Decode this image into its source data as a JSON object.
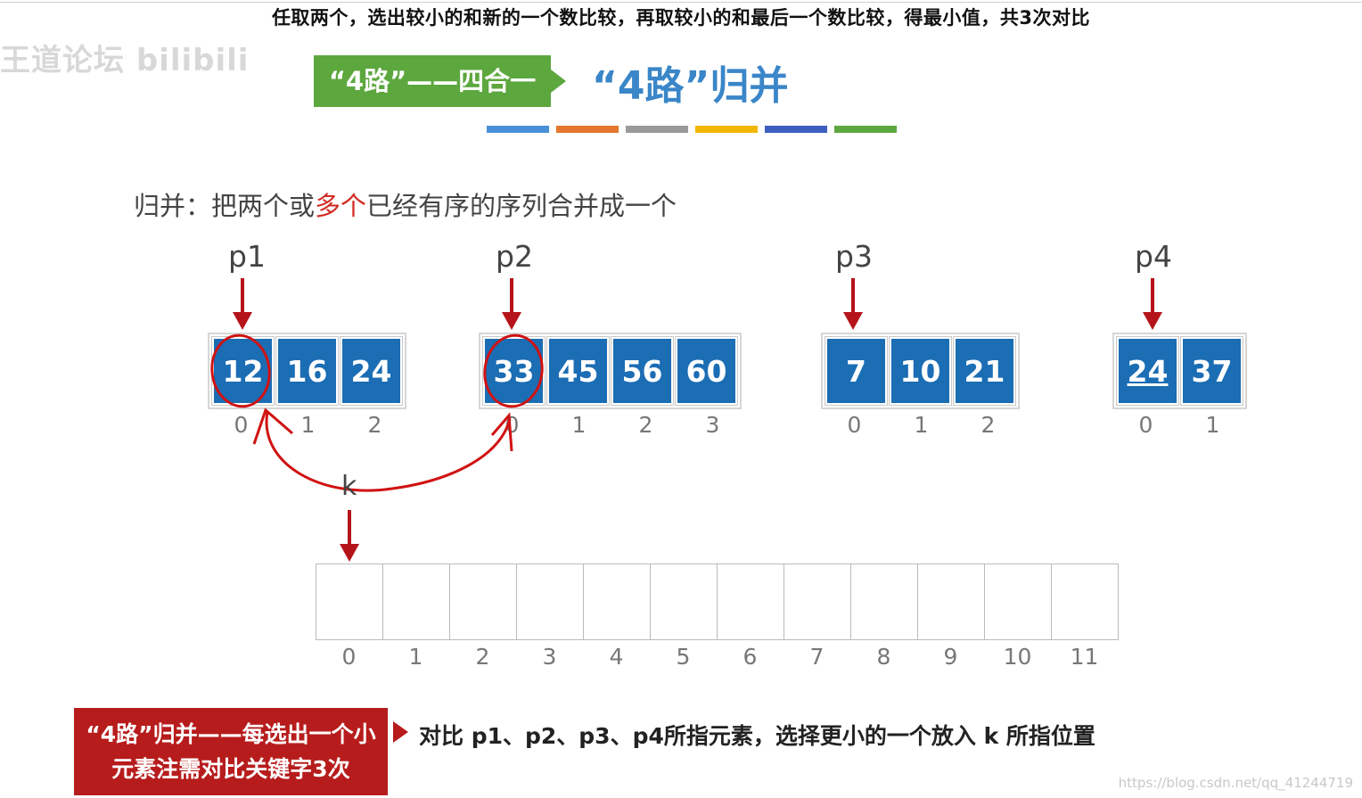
{
  "subtitle": "任取两个，选出较小的和新的一个数比较，再取较小的和最后一个数比较，得最小值，共3次对比",
  "watermark": "王道论坛 bilibili",
  "title_tag": "“4路”——四合一",
  "main_title": "“4路”归并",
  "color_strip": [
    "#4a90d9",
    "#e6772e",
    "#9a9a9a",
    "#f2b705",
    "#3d5fbf",
    "#5da73f"
  ],
  "definition": {
    "prefix": "归并：把两个或",
    "highlight": "多个",
    "suffix": "已经有序的序列合并成一个"
  },
  "arrays": [
    {
      "pointer": "p1",
      "values": [
        "12",
        "16",
        "24"
      ],
      "indices": [
        "0",
        "1",
        "2"
      ]
    },
    {
      "pointer": "p2",
      "values": [
        "33",
        "45",
        "56",
        "60"
      ],
      "indices": [
        "0",
        "1",
        "2",
        "3"
      ]
    },
    {
      "pointer": "p3",
      "values": [
        "7",
        "10",
        "21"
      ],
      "indices": [
        "0",
        "1",
        "2"
      ]
    },
    {
      "pointer": "p4",
      "values": [
        "24",
        "37"
      ],
      "indices": [
        "0",
        "1"
      ]
    }
  ],
  "output": {
    "pointer": "k",
    "indices": [
      "0",
      "1",
      "2",
      "3",
      "4",
      "5",
      "6",
      "7",
      "8",
      "9",
      "10",
      "11"
    ]
  },
  "note": {
    "line1": "“4路”归并——每选出一个小",
    "line2": "元素注需对比关键字3次"
  },
  "explanation": "对比 p1、p2、p3、p4所指元素，选择更小的一个放入 k 所指位置",
  "credit": "https://blog.csdn.net/qq_41244719",
  "colors": {
    "cell_blue": "#1b6db4",
    "annotation_red": "#b5141a",
    "tag_green": "#5da73f"
  }
}
